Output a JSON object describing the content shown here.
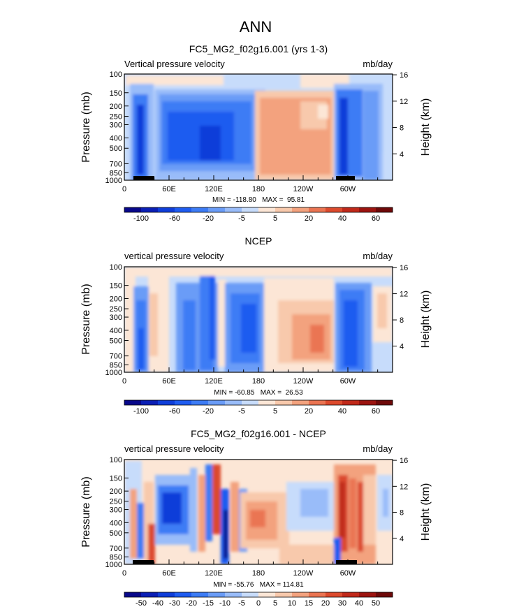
{
  "figure": {
    "title": "ANN",
    "colors": [
      "#08088a",
      "#0b1fb5",
      "#0f3ed9",
      "#1f5cf0",
      "#3d7cf5",
      "#6a9cf7",
      "#99bcf9",
      "#c7dcfb",
      "#fce6d6",
      "#f8c9ac",
      "#f3a27e",
      "#ea7452",
      "#dc4a2d",
      "#c0291a",
      "#9c1410",
      "#6e0909"
    ]
  },
  "panels": [
    {
      "title": "FC5_MG2_f02g16.001 (yrs 1-3)",
      "left_label": "Vertical pressure velocity",
      "right_label": "mb/day",
      "stats": "MIN = -118.80   MAX =  95.81",
      "colorbar_labels": [
        "-100",
        "-60",
        "-20",
        "-5",
        "5",
        "20",
        "40",
        "60"
      ]
    },
    {
      "title": "NCEP",
      "left_label": "vertical pressure velocity",
      "right_label": "mb/day",
      "stats": "MIN = -60.85   MAX =  26.53",
      "colorbar_labels": [
        "-100",
        "-60",
        "-20",
        "-5",
        "5",
        "20",
        "40",
        "60"
      ]
    },
    {
      "title": "FC5_MG2_f02g16.001 - NCEP",
      "left_label": "vertical pressure velocity",
      "right_label": "mb/day",
      "stats": "MIN = -55.76   MAX = 114.81",
      "colorbar_labels": [
        "-50",
        "-40",
        "-30",
        "-20",
        "-15",
        "-10",
        "-5",
        "0",
        "5",
        "10",
        "15",
        "20",
        "30",
        "40",
        "50"
      ]
    }
  ],
  "chart_data": [
    {
      "type": "heatmap",
      "title": "FC5_MG2_f02g16.001 (yrs 1-3)",
      "xlabel": "",
      "ylabel": "Pressure (mb)",
      "y2label": "Height (km)",
      "x_ticks": [
        "0",
        "60E",
        "120E",
        "180",
        "120W",
        "60W"
      ],
      "x_tick_values": [
        0,
        60,
        120,
        180,
        240,
        300
      ],
      "xlim": [
        0,
        360
      ],
      "y_ticks": [
        "100",
        "150",
        "200",
        "250",
        "300",
        "400",
        "500",
        "700",
        "850",
        "1000"
      ],
      "y_tick_values": [
        100,
        150,
        200,
        250,
        300,
        400,
        500,
        700,
        850,
        1000
      ],
      "ylim": [
        1000,
        100
      ],
      "y2_ticks": [
        "4",
        "8",
        "12",
        "16"
      ],
      "y2_tick_values": [
        4,
        8,
        12,
        16
      ],
      "levels": [
        -100,
        -80,
        -60,
        -40,
        -20,
        -10,
        -5,
        0,
        5,
        10,
        20,
        30,
        40,
        50,
        60
      ],
      "min": -118.8,
      "max": 95.81,
      "features": [
        {
          "lon": 20,
          "p_top": 130,
          "p_bot": 1000,
          "value": -60
        },
        {
          "lon": 95,
          "p_top": 130,
          "p_bot": 1000,
          "value": -40
        },
        {
          "lon": 220,
          "p_top": 150,
          "p_bot": 1000,
          "value": 25
        },
        {
          "lon": 305,
          "p_top": 130,
          "p_bot": 1000,
          "value": -50
        }
      ]
    },
    {
      "type": "heatmap",
      "title": "NCEP",
      "xlabel": "",
      "ylabel": "Pressure (mb)",
      "y2label": "Height (km)",
      "x_ticks": [
        "0",
        "60E",
        "120E",
        "180",
        "120W",
        "60W"
      ],
      "x_tick_values": [
        0,
        60,
        120,
        180,
        240,
        300
      ],
      "xlim": [
        0,
        360
      ],
      "y_ticks": [
        "100",
        "150",
        "200",
        "250",
        "300",
        "400",
        "500",
        "700",
        "850",
        "1000"
      ],
      "y_tick_values": [
        100,
        150,
        200,
        250,
        300,
        400,
        500,
        700,
        850,
        1000
      ],
      "ylim": [
        1000,
        100
      ],
      "y2_ticks": [
        "4",
        "8",
        "12",
        "16"
      ],
      "y2_tick_values": [
        4,
        8,
        12,
        16
      ],
      "levels": [
        -100,
        -80,
        -60,
        -40,
        -20,
        -10,
        -5,
        0,
        5,
        10,
        20,
        30,
        40,
        50,
        60
      ],
      "min": -60.85,
      "max": 26.53,
      "features": [
        {
          "lon": 20,
          "p_top": 200,
          "p_bot": 1000,
          "value": -40
        },
        {
          "lon": 110,
          "p_top": 150,
          "p_bot": 1000,
          "value": -40
        },
        {
          "lon": 160,
          "p_top": 200,
          "p_bot": 1000,
          "value": -30
        },
        {
          "lon": 250,
          "p_top": 250,
          "p_bot": 1000,
          "value": 20
        },
        {
          "lon": 305,
          "p_top": 150,
          "p_bot": 1000,
          "value": -40
        }
      ]
    },
    {
      "type": "heatmap",
      "title": "FC5_MG2_f02g16.001 - NCEP",
      "xlabel": "",
      "ylabel": "Pressure (mb)",
      "y2label": "Height (km)",
      "x_ticks": [
        "0",
        "60E",
        "120E",
        "180",
        "120W",
        "60W"
      ],
      "x_tick_values": [
        0,
        60,
        120,
        180,
        240,
        300
      ],
      "xlim": [
        0,
        360
      ],
      "y_ticks": [
        "100",
        "150",
        "200",
        "250",
        "300",
        "400",
        "500",
        "700",
        "850",
        "1000"
      ],
      "y_tick_values": [
        100,
        150,
        200,
        250,
        300,
        400,
        500,
        700,
        850,
        1000
      ],
      "ylim": [
        1000,
        100
      ],
      "y2_ticks": [
        "4",
        "8",
        "12",
        "16"
      ],
      "y2_tick_values": [
        4,
        8,
        12,
        16
      ],
      "levels": [
        -50,
        -40,
        -30,
        -20,
        -15,
        -10,
        -5,
        0,
        5,
        10,
        15,
        20,
        30,
        40,
        50
      ],
      "min": -55.76,
      "max": 114.81,
      "features": [
        {
          "lon": 60,
          "p_top": 200,
          "p_bot": 700,
          "value": -30
        },
        {
          "lon": 120,
          "p_top": 150,
          "p_bot": 1000,
          "value": -25
        },
        {
          "lon": 190,
          "p_top": 250,
          "p_bot": 700,
          "value": 15
        },
        {
          "lon": 300,
          "p_top": 150,
          "p_bot": 1000,
          "value": 40
        }
      ]
    }
  ]
}
